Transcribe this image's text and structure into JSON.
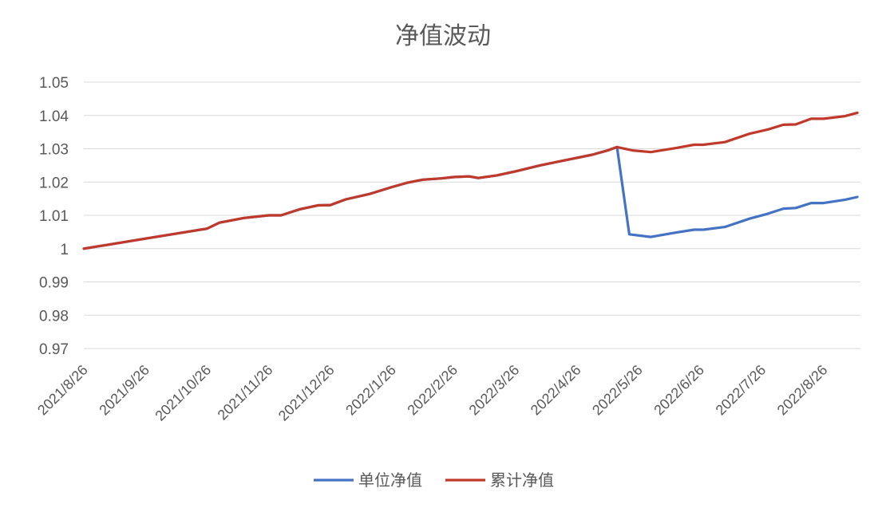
{
  "chart_data": {
    "type": "line",
    "title": "净值波动",
    "xlabel": "",
    "ylabel": "",
    "ylim": [
      0.97,
      1.05
    ],
    "yticks": [
      "1.05",
      "1.04",
      "1.03",
      "1.02",
      "1.01",
      "1",
      "0.99",
      "0.98",
      "0.97"
    ],
    "ytick_values": [
      1.05,
      1.04,
      1.03,
      1.02,
      1.01,
      1.0,
      0.99,
      0.98,
      0.97
    ],
    "categories": [
      "2021/8/26",
      "2021/9/26",
      "2021/10/26",
      "2021/11/26",
      "2021/12/26",
      "2022/1/26",
      "2022/2/26",
      "2022/3/26",
      "2022/4/26",
      "2022/5/26",
      "2022/6/26",
      "2022/7/26",
      "2022/8/26"
    ],
    "grid": "horizontal",
    "legend": "bottom",
    "series": [
      {
        "name": "单位净值",
        "color": "#4472c4",
        "points": [
          [
            0.0,
            1.0
          ],
          [
            1.0,
            1.003
          ],
          [
            2.0,
            1.006
          ],
          [
            2.2,
            1.0078
          ],
          [
            2.6,
            1.0092
          ],
          [
            3.0,
            1.01
          ],
          [
            3.2,
            1.01
          ],
          [
            3.5,
            1.0118
          ],
          [
            3.8,
            1.013
          ],
          [
            4.0,
            1.0131
          ],
          [
            4.25,
            1.0148
          ],
          [
            4.65,
            1.0165
          ],
          [
            5.0,
            1.0185
          ],
          [
            5.25,
            1.0198
          ],
          [
            5.5,
            1.0207
          ],
          [
            5.8,
            1.0211
          ],
          [
            6.0,
            1.0215
          ],
          [
            6.25,
            1.0217
          ],
          [
            6.4,
            1.0212
          ],
          [
            6.7,
            1.022
          ],
          [
            7.0,
            1.0232
          ],
          [
            7.4,
            1.025
          ],
          [
            7.8,
            1.0265
          ],
          [
            8.25,
            1.0282
          ],
          [
            8.5,
            1.0295
          ],
          [
            8.65,
            1.0305
          ],
          [
            8.85,
            1.0043
          ],
          [
            9.2,
            1.0035
          ],
          [
            9.6,
            1.0048
          ],
          [
            9.9,
            1.0057
          ],
          [
            10.05,
            1.0057
          ],
          [
            10.4,
            1.0065
          ],
          [
            10.8,
            1.009
          ],
          [
            11.1,
            1.0105
          ],
          [
            11.35,
            1.012
          ],
          [
            11.55,
            1.0122
          ],
          [
            11.8,
            1.0137
          ],
          [
            12.0,
            1.0137
          ],
          [
            12.35,
            1.0147
          ],
          [
            12.55,
            1.0155
          ]
        ]
      },
      {
        "name": "累计净值",
        "color": "#c0392b",
        "points": [
          [
            0.0,
            1.0
          ],
          [
            1.0,
            1.003
          ],
          [
            2.0,
            1.006
          ],
          [
            2.2,
            1.0078
          ],
          [
            2.6,
            1.0092
          ],
          [
            3.0,
            1.01
          ],
          [
            3.2,
            1.01
          ],
          [
            3.5,
            1.0118
          ],
          [
            3.8,
            1.013
          ],
          [
            4.0,
            1.0131
          ],
          [
            4.25,
            1.0148
          ],
          [
            4.65,
            1.0165
          ],
          [
            5.0,
            1.0185
          ],
          [
            5.25,
            1.0198
          ],
          [
            5.5,
            1.0207
          ],
          [
            5.8,
            1.0211
          ],
          [
            6.0,
            1.0215
          ],
          [
            6.25,
            1.0217
          ],
          [
            6.4,
            1.0212
          ],
          [
            6.7,
            1.022
          ],
          [
            7.0,
            1.0232
          ],
          [
            7.4,
            1.025
          ],
          [
            7.8,
            1.0265
          ],
          [
            8.25,
            1.0282
          ],
          [
            8.5,
            1.0295
          ],
          [
            8.65,
            1.0305
          ],
          [
            8.9,
            1.0295
          ],
          [
            9.2,
            1.029
          ],
          [
            9.6,
            1.0302
          ],
          [
            9.9,
            1.0312
          ],
          [
            10.05,
            1.0312
          ],
          [
            10.4,
            1.032
          ],
          [
            10.8,
            1.0345
          ],
          [
            11.1,
            1.0358
          ],
          [
            11.35,
            1.0372
          ],
          [
            11.55,
            1.0373
          ],
          [
            11.8,
            1.039
          ],
          [
            12.0,
            1.039
          ],
          [
            12.35,
            1.0398
          ],
          [
            12.55,
            1.0408
          ]
        ]
      }
    ]
  }
}
